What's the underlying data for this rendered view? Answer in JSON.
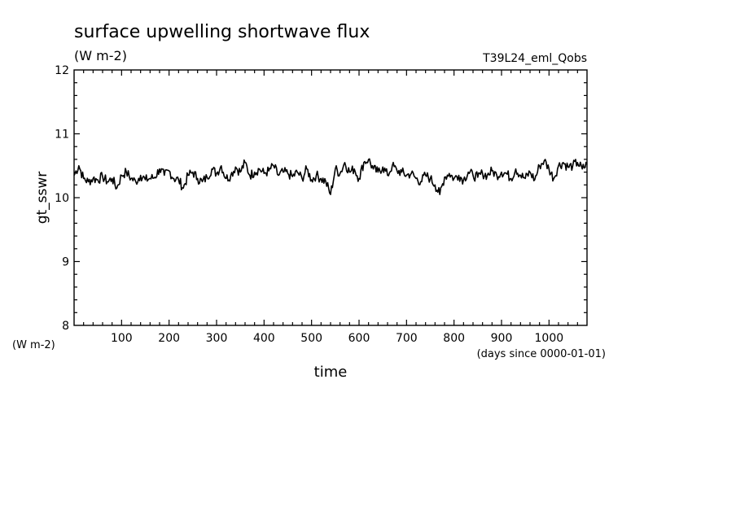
{
  "chart_data": {
    "type": "line",
    "title": "surface upwelling shortwave flux",
    "subtitle": "(W m-2)",
    "run_label": "T39L24_eml_Qobs",
    "xlabel": "time",
    "xunits": "(days since 0000-01-01)",
    "ylabel": "gt_sswr",
    "yunits": "(W m-2)",
    "xlim": [
      0,
      1080
    ],
    "ylim": [
      8,
      12
    ],
    "xticks": [
      100,
      200,
      300,
      400,
      500,
      600,
      700,
      800,
      900,
      1000
    ],
    "yticks": [
      8,
      9,
      10,
      11,
      12
    ],
    "grid": false,
    "series": [
      {
        "x": [
          0,
          10,
          20,
          30,
          40,
          50,
          60,
          70,
          80,
          90,
          100,
          110,
          120,
          130,
          140,
          150,
          160,
          170,
          180,
          190,
          200,
          210,
          220,
          230,
          240,
          250,
          260,
          270,
          280,
          290,
          300,
          310,
          320,
          330,
          340,
          350,
          360,
          370,
          380,
          390,
          400,
          410,
          420,
          430,
          440,
          450,
          460,
          470,
          480,
          490,
          500,
          510,
          520,
          530,
          540,
          550,
          560,
          570,
          580,
          590,
          600,
          610,
          620,
          630,
          640,
          650,
          660,
          670,
          680,
          690,
          700,
          710,
          720,
          730,
          740,
          750,
          760,
          770,
          780,
          790,
          800,
          810,
          820,
          830,
          840,
          850,
          860,
          870,
          880,
          890,
          900,
          910,
          920,
          930,
          940,
          950,
          960,
          970,
          980,
          990,
          1000,
          1010,
          1020,
          1030,
          1040,
          1050,
          1060,
          1070,
          1080
        ],
        "y": [
          10.35,
          10.5,
          10.3,
          10.25,
          10.3,
          10.28,
          10.33,
          10.25,
          10.3,
          10.15,
          10.35,
          10.4,
          10.3,
          10.25,
          10.35,
          10.28,
          10.3,
          10.32,
          10.45,
          10.35,
          10.42,
          10.3,
          10.28,
          10.15,
          10.35,
          10.4,
          10.3,
          10.25,
          10.32,
          10.45,
          10.38,
          10.5,
          10.3,
          10.35,
          10.48,
          10.4,
          10.55,
          10.35,
          10.4,
          10.45,
          10.38,
          10.42,
          10.5,
          10.35,
          10.4,
          10.38,
          10.33,
          10.4,
          10.3,
          10.45,
          10.28,
          10.35,
          10.3,
          10.25,
          10.05,
          10.45,
          10.38,
          10.55,
          10.4,
          10.45,
          10.3,
          10.55,
          10.6,
          10.45,
          10.4,
          10.48,
          10.35,
          10.5,
          10.42,
          10.4,
          10.35,
          10.38,
          10.3,
          10.25,
          10.35,
          10.3,
          10.2,
          10.05,
          10.32,
          10.38,
          10.3,
          10.35,
          10.28,
          10.4,
          10.35,
          10.32,
          10.38,
          10.35,
          10.42,
          10.35,
          10.4,
          10.38,
          10.3,
          10.45,
          10.35,
          10.3,
          10.4,
          10.28,
          10.5,
          10.58,
          10.45,
          10.3,
          10.5,
          10.55,
          10.48,
          10.5,
          10.55,
          10.45,
          10.52
        ]
      }
    ]
  }
}
